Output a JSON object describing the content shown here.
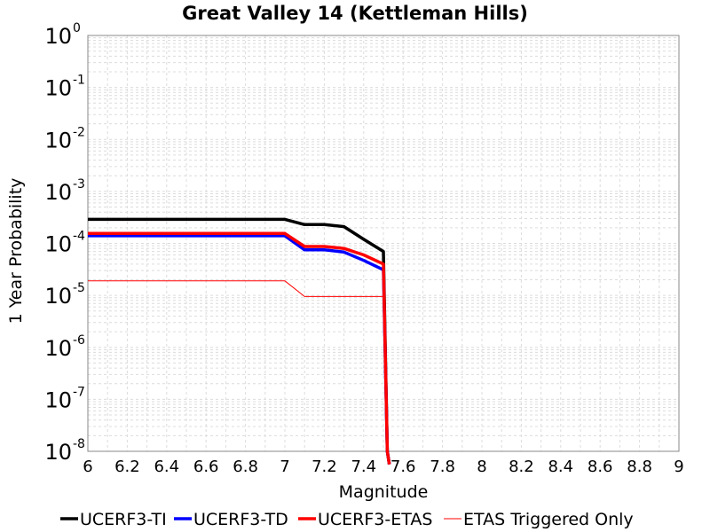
{
  "chart_data": {
    "type": "line",
    "title": "Great Valley 14 (Kettleman Hills)",
    "xlabel": "Magnitude",
    "ylabel": "1 Year Probability",
    "xlim": [
      6,
      9
    ],
    "ylim_log10": [
      -8,
      0
    ],
    "yscale": "log",
    "grid": true,
    "x_ticks": [
      "6",
      "6.2",
      "6.4",
      "6.6",
      "6.8",
      "7",
      "7.2",
      "7.4",
      "7.6",
      "7.8",
      "8",
      "8.2",
      "8.4",
      "8.6",
      "8.8",
      "9"
    ],
    "y_ticks": [
      {
        "base": "10",
        "exp": "0"
      },
      {
        "base": "10",
        "exp": "-1"
      },
      {
        "base": "10",
        "exp": "-2"
      },
      {
        "base": "10",
        "exp": "-3"
      },
      {
        "base": "10",
        "exp": "-4"
      },
      {
        "base": "10",
        "exp": "-5"
      },
      {
        "base": "10",
        "exp": "-6"
      },
      {
        "base": "10",
        "exp": "-7"
      },
      {
        "base": "10",
        "exp": "-8"
      }
    ],
    "legend_position": "bottom",
    "series": [
      {
        "name": "UCERF3-TI",
        "color": "#000000",
        "width": "thick",
        "x": [
          6.0,
          7.0,
          7.1,
          7.2,
          7.3,
          7.4,
          7.5,
          7.52,
          7.53
        ],
        "y": [
          0.00029,
          0.00029,
          0.00023,
          0.00023,
          0.00021,
          0.00012,
          7e-05,
          1e-08,
          1e-09
        ]
      },
      {
        "name": "UCERF3-TD",
        "color": "#0000ff",
        "width": "thick",
        "x": [
          6.0,
          7.0,
          7.1,
          7.2,
          7.3,
          7.4,
          7.5,
          7.52,
          7.53
        ],
        "y": [
          0.00014,
          0.00014,
          7.5e-05,
          7.5e-05,
          6.8e-05,
          4.7e-05,
          3.1e-05,
          1e-08,
          1e-09
        ]
      },
      {
        "name": "UCERF3-ETAS",
        "color": "#ff0000",
        "width": "thick",
        "x": [
          6.0,
          7.0,
          7.1,
          7.2,
          7.3,
          7.4,
          7.5,
          7.52,
          7.53
        ],
        "y": [
          0.000155,
          0.000155,
          8.7e-05,
          8.7e-05,
          8e-05,
          6e-05,
          4e-05,
          1e-08,
          1e-09
        ]
      },
      {
        "name": "ETAS Triggered Only",
        "color": "#ff0000",
        "width": "thin",
        "x": [
          6.0,
          7.0,
          7.1,
          7.5,
          7.52,
          7.53
        ],
        "y": [
          1.9e-05,
          1.9e-05,
          9.5e-06,
          9.5e-06,
          1e-08,
          1e-09
        ]
      }
    ]
  }
}
